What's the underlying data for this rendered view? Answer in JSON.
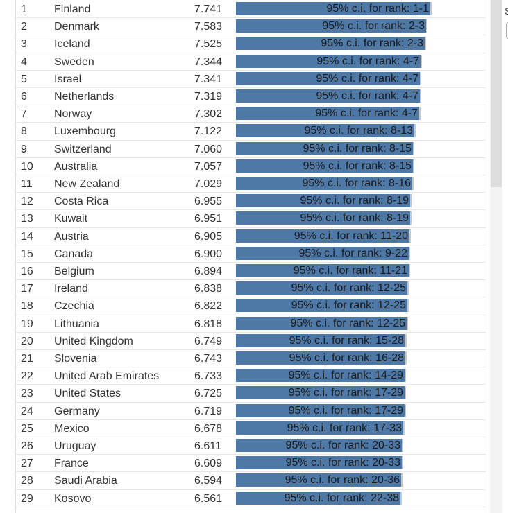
{
  "side": {
    "letter": "S"
  },
  "chart_data": {
    "type": "bar",
    "orientation": "horizontal",
    "columns": [
      "rank",
      "country",
      "score",
      "ci_label"
    ],
    "xlim": [
      0,
      7.741
    ],
    "grid": false,
    "colors": {
      "bar": "#4e79a7",
      "whisker": "#c8c8c8",
      "text": "#333333"
    },
    "rows": [
      {
        "rank": "1",
        "country": "Finland",
        "score": 7.741,
        "ci_label": "95% c.i. for rank: 1-1"
      },
      {
        "rank": "2",
        "country": "Denmark",
        "score": 7.583,
        "ci_label": "95% c.i. for rank: 2-3"
      },
      {
        "rank": "3",
        "country": "Iceland",
        "score": 7.525,
        "ci_label": "95% c.i. for rank: 2-3"
      },
      {
        "rank": "4",
        "country": "Sweden",
        "score": 7.344,
        "ci_label": "95% c.i. for rank: 4-7"
      },
      {
        "rank": "5",
        "country": "Israel",
        "score": 7.341,
        "ci_label": "95% c.i. for rank: 4-7"
      },
      {
        "rank": "6",
        "country": "Netherlands",
        "score": 7.319,
        "ci_label": "95% c.i. for rank: 4-7"
      },
      {
        "rank": "7",
        "country": "Norway",
        "score": 7.302,
        "ci_label": "95% c.i. for rank: 4-7"
      },
      {
        "rank": "8",
        "country": "Luxembourg",
        "score": 7.122,
        "ci_label": "95% c.i. for rank: 8-13"
      },
      {
        "rank": "9",
        "country": "Switzerland",
        "score": 7.06,
        "ci_label": "95% c.i. for rank: 8-15"
      },
      {
        "rank": "10",
        "country": "Australia",
        "score": 7.057,
        "ci_label": "95% c.i. for rank: 8-15"
      },
      {
        "rank": "11",
        "country": "New Zealand",
        "score": 7.029,
        "ci_label": "95% c.i. for rank: 8-16"
      },
      {
        "rank": "12",
        "country": "Costa Rica",
        "score": 6.955,
        "ci_label": "95% c.i. for rank: 8-19"
      },
      {
        "rank": "13",
        "country": "Kuwait",
        "score": 6.951,
        "ci_label": "95% c.i. for rank: 8-19"
      },
      {
        "rank": "14",
        "country": "Austria",
        "score": 6.905,
        "ci_label": "95% c.i. for rank: 11-20"
      },
      {
        "rank": "15",
        "country": "Canada",
        "score": 6.9,
        "ci_label": "95% c.i. for rank: 9-22"
      },
      {
        "rank": "16",
        "country": "Belgium",
        "score": 6.894,
        "ci_label": "95% c.i. for rank: 11-21"
      },
      {
        "rank": "17",
        "country": "Ireland",
        "score": 6.838,
        "ci_label": "95% c.i. for rank: 12-25"
      },
      {
        "rank": "18",
        "country": "Czechia",
        "score": 6.822,
        "ci_label": "95% c.i. for rank: 12-25"
      },
      {
        "rank": "19",
        "country": "Lithuania",
        "score": 6.818,
        "ci_label": "95% c.i. for rank: 12-25"
      },
      {
        "rank": "20",
        "country": "United Kingdom",
        "score": 6.749,
        "ci_label": "95% c.i. for rank: 15-28"
      },
      {
        "rank": "21",
        "country": "Slovenia",
        "score": 6.743,
        "ci_label": "95% c.i. for rank: 16-28"
      },
      {
        "rank": "22",
        "country": "United Arab Emirates",
        "score": 6.733,
        "ci_label": "95% c.i. for rank: 14-29"
      },
      {
        "rank": "23",
        "country": "United States",
        "score": 6.725,
        "ci_label": "95% c.i. for rank: 17-29"
      },
      {
        "rank": "24",
        "country": "Germany",
        "score": 6.719,
        "ci_label": "95% c.i. for rank: 17-29"
      },
      {
        "rank": "25",
        "country": "Mexico",
        "score": 6.678,
        "ci_label": "95% c.i. for rank: 17-33"
      },
      {
        "rank": "26",
        "country": "Uruguay",
        "score": 6.611,
        "ci_label": "95% c.i. for rank: 20-33"
      },
      {
        "rank": "27",
        "country": "France",
        "score": 6.609,
        "ci_label": "95% c.i. for rank: 20-33"
      },
      {
        "rank": "28",
        "country": "Saudi Arabia",
        "score": 6.594,
        "ci_label": "95% c.i. for rank: 20-36"
      },
      {
        "rank": "29",
        "country": "Kosovo",
        "score": 6.561,
        "ci_label": "95% c.i. for rank: 22-38"
      }
    ]
  }
}
